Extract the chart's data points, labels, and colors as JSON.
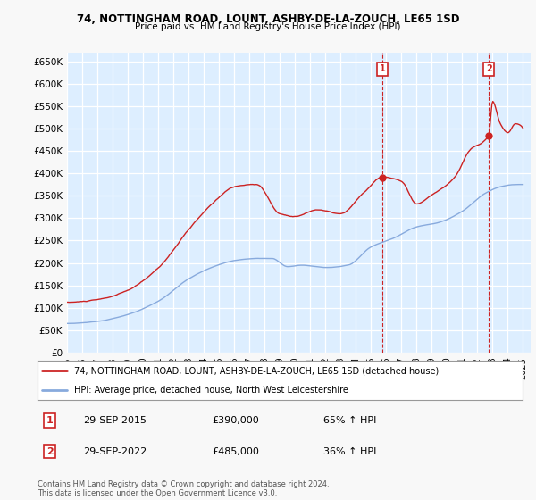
{
  "title": "74, NOTTINGHAM ROAD, LOUNT, ASHBY-DE-LA-ZOUCH, LE65 1SD",
  "subtitle": "Price paid vs. HM Land Registry's House Price Index (HPI)",
  "ylim": [
    0,
    670000
  ],
  "yticks": [
    0,
    50000,
    100000,
    150000,
    200000,
    250000,
    300000,
    350000,
    400000,
    450000,
    500000,
    550000,
    600000,
    650000
  ],
  "ytick_labels": [
    "£0",
    "£50K",
    "£100K",
    "£150K",
    "£200K",
    "£250K",
    "£300K",
    "£350K",
    "£400K",
    "£450K",
    "£500K",
    "£550K",
    "£600K",
    "£650K"
  ],
  "hpi_color": "#88aadd",
  "price_color": "#cc2222",
  "plot_bg_color": "#ddeeff",
  "fig_bg_color": "#f8f8f8",
  "grid_color": "#ffffff",
  "legend_entry_1": "74, NOTTINGHAM ROAD, LOUNT, ASHBY-DE-LA-ZOUCH, LE65 1SD (detached house)",
  "legend_entry_2": "HPI: Average price, detached house, North West Leicestershire",
  "sale_1_date": "29-SEP-2015",
  "sale_1_price": "£390,000",
  "sale_1_hpi": "65% ↑ HPI",
  "sale_2_date": "29-SEP-2022",
  "sale_2_price": "£485,000",
  "sale_2_hpi": "36% ↑ HPI",
  "footer": "Contains HM Land Registry data © Crown copyright and database right 2024.\nThis data is licensed under the Open Government Licence v3.0.",
  "sale1_x": 2015.75,
  "sale1_y": 390000,
  "sale2_x": 2022.75,
  "sale2_y": 485000,
  "xlim_start": 1995,
  "xlim_end": 2025.5
}
